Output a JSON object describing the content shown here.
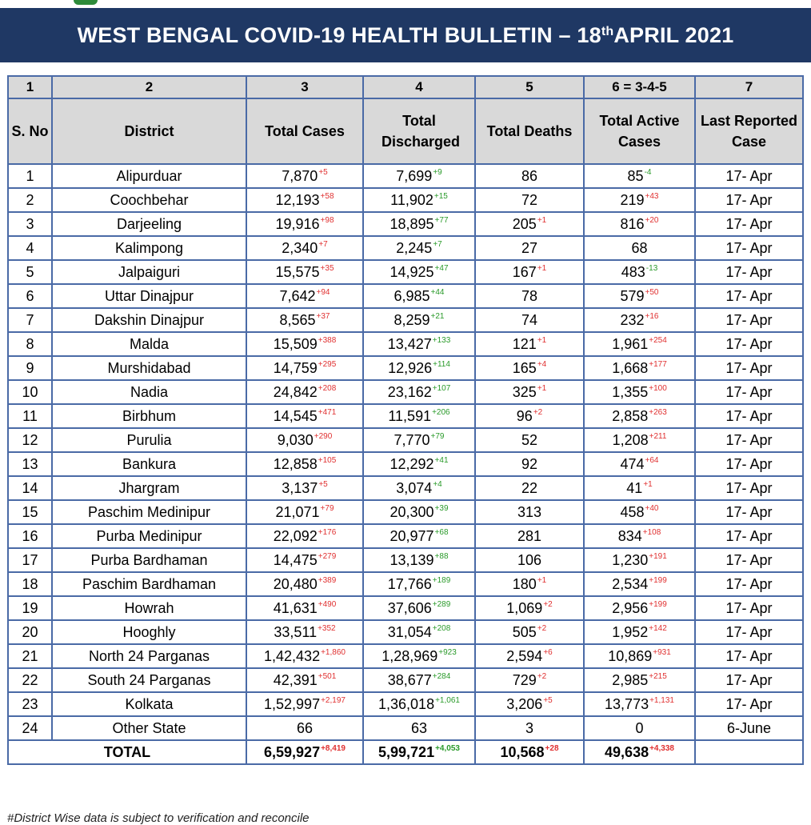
{
  "bulletin_title": "WEST BENGAL COVID-19 HEALTH BULLETIN – 18",
  "bulletin_title_sup": "th",
  "bulletin_title_tail": " APRIL 2021",
  "column_numbers": [
    "1",
    "2",
    "3",
    "4",
    "5",
    "6 = 3-4-5",
    "7"
  ],
  "column_titles": [
    "S. No",
    "District",
    "Total Cases",
    "Total Discharged",
    "Total Deaths",
    "Total Active Cases",
    "Last Reported Case"
  ],
  "rows": [
    {
      "sno": "1",
      "district": "Alipurduar",
      "cases": "7,870",
      "cases_d": "+5",
      "disc": "7,699",
      "disc_d": "+9",
      "deaths": "86",
      "deaths_d": "",
      "active": "85",
      "active_d": "-4",
      "last": "17- Apr"
    },
    {
      "sno": "2",
      "district": "Coochbehar",
      "cases": "12,193",
      "cases_d": "+58",
      "disc": "11,902",
      "disc_d": "+15",
      "deaths": "72",
      "deaths_d": "",
      "active": "219",
      "active_d": "+43",
      "last": "17- Apr"
    },
    {
      "sno": "3",
      "district": "Darjeeling",
      "cases": "19,916",
      "cases_d": "+98",
      "disc": "18,895",
      "disc_d": "+77",
      "deaths": "205",
      "deaths_d": "+1",
      "active": "816",
      "active_d": "+20",
      "last": "17- Apr"
    },
    {
      "sno": "4",
      "district": "Kalimpong",
      "cases": "2,340",
      "cases_d": "+7",
      "disc": "2,245",
      "disc_d": "+7",
      "deaths": "27",
      "deaths_d": "",
      "active": "68",
      "active_d": "",
      "last": "17- Apr"
    },
    {
      "sno": "5",
      "district": "Jalpaiguri",
      "cases": "15,575",
      "cases_d": "+35",
      "disc": "14,925",
      "disc_d": "+47",
      "deaths": "167",
      "deaths_d": "+1",
      "active": "483",
      "active_d": "-13",
      "last": "17- Apr"
    },
    {
      "sno": "6",
      "district": "Uttar Dinajpur",
      "cases": "7,642",
      "cases_d": "+94",
      "disc": "6,985",
      "disc_d": "+44",
      "deaths": "78",
      "deaths_d": "",
      "active": "579",
      "active_d": "+50",
      "last": "17- Apr"
    },
    {
      "sno": "7",
      "district": "Dakshin Dinajpur",
      "cases": "8,565",
      "cases_d": "+37",
      "disc": "8,259",
      "disc_d": "+21",
      "deaths": "74",
      "deaths_d": "",
      "active": "232",
      "active_d": "+16",
      "last": "17- Apr"
    },
    {
      "sno": "8",
      "district": "Malda",
      "cases": "15,509",
      "cases_d": "+388",
      "disc": "13,427",
      "disc_d": "+133",
      "deaths": "121",
      "deaths_d": "+1",
      "active": "1,961",
      "active_d": "+254",
      "last": "17- Apr"
    },
    {
      "sno": "9",
      "district": "Murshidabad",
      "cases": "14,759",
      "cases_d": "+295",
      "disc": "12,926",
      "disc_d": "+114",
      "deaths": "165",
      "deaths_d": "+4",
      "active": "1,668",
      "active_d": "+177",
      "last": "17- Apr"
    },
    {
      "sno": "10",
      "district": "Nadia",
      "cases": "24,842",
      "cases_d": "+208",
      "disc": "23,162",
      "disc_d": "+107",
      "deaths": "325",
      "deaths_d": "+1",
      "active": "1,355",
      "active_d": "+100",
      "last": "17- Apr"
    },
    {
      "sno": "11",
      "district": "Birbhum",
      "cases": "14,545",
      "cases_d": "+471",
      "disc": "11,591",
      "disc_d": "+206",
      "deaths": "96",
      "deaths_d": "+2",
      "active": "2,858",
      "active_d": "+263",
      "last": "17- Apr"
    },
    {
      "sno": "12",
      "district": "Purulia",
      "cases": "9,030",
      "cases_d": "+290",
      "disc": "7,770",
      "disc_d": "+79",
      "deaths": "52",
      "deaths_d": "",
      "active": "1,208",
      "active_d": "+211",
      "last": "17- Apr"
    },
    {
      "sno": "13",
      "district": "Bankura",
      "cases": "12,858",
      "cases_d": "+105",
      "disc": "12,292",
      "disc_d": "+41",
      "deaths": "92",
      "deaths_d": "",
      "active": "474",
      "active_d": "+64",
      "last": "17- Apr"
    },
    {
      "sno": "14",
      "district": "Jhargram",
      "cases": "3,137",
      "cases_d": "+5",
      "disc": "3,074",
      "disc_d": "+4",
      "deaths": "22",
      "deaths_d": "",
      "active": "41",
      "active_d": "+1",
      "last": "17- Apr"
    },
    {
      "sno": "15",
      "district": "Paschim Medinipur",
      "cases": "21,071",
      "cases_d": "+79",
      "disc": "20,300",
      "disc_d": "+39",
      "deaths": "313",
      "deaths_d": "",
      "active": "458",
      "active_d": "+40",
      "last": "17- Apr"
    },
    {
      "sno": "16",
      "district": "Purba Medinipur",
      "cases": "22,092",
      "cases_d": "+176",
      "disc": "20,977",
      "disc_d": "+68",
      "deaths": "281",
      "deaths_d": "",
      "active": "834",
      "active_d": "+108",
      "last": "17- Apr"
    },
    {
      "sno": "17",
      "district": "Purba Bardhaman",
      "cases": "14,475",
      "cases_d": "+279",
      "disc": "13,139",
      "disc_d": "+88",
      "deaths": "106",
      "deaths_d": "",
      "active": "1,230",
      "active_d": "+191",
      "last": "17- Apr"
    },
    {
      "sno": "18",
      "district": "Paschim Bardhaman",
      "cases": "20,480",
      "cases_d": "+389",
      "disc": "17,766",
      "disc_d": "+189",
      "deaths": "180",
      "deaths_d": "+1",
      "active": "2,534",
      "active_d": "+199",
      "last": "17- Apr"
    },
    {
      "sno": "19",
      "district": "Howrah",
      "cases": "41,631",
      "cases_d": "+490",
      "disc": "37,606",
      "disc_d": "+289",
      "deaths": "1,069",
      "deaths_d": "+2",
      "active": "2,956",
      "active_d": "+199",
      "last": "17- Apr"
    },
    {
      "sno": "20",
      "district": "Hooghly",
      "cases": "33,511",
      "cases_d": "+352",
      "disc": "31,054",
      "disc_d": "+208",
      "deaths": "505",
      "deaths_d": "+2",
      "active": "1,952",
      "active_d": "+142",
      "last": "17- Apr"
    },
    {
      "sno": "21",
      "district": "North 24 Parganas",
      "cases": "1,42,432",
      "cases_d": "+1,860",
      "disc": "1,28,969",
      "disc_d": "+923",
      "deaths": "2,594",
      "deaths_d": "+6",
      "active": "10,869",
      "active_d": "+931",
      "last": "17- Apr"
    },
    {
      "sno": "22",
      "district": "South 24 Parganas",
      "cases": "42,391",
      "cases_d": "+501",
      "disc": "38,677",
      "disc_d": "+284",
      "deaths": "729",
      "deaths_d": "+2",
      "active": "2,985",
      "active_d": "+215",
      "last": "17- Apr"
    },
    {
      "sno": "23",
      "district": "Kolkata",
      "cases": "1,52,997",
      "cases_d": "+2,197",
      "disc": "1,36,018",
      "disc_d": "+1,061",
      "deaths": "3,206",
      "deaths_d": "+5",
      "active": "13,773",
      "active_d": "+1,131",
      "last": "17- Apr"
    },
    {
      "sno": "24",
      "district": "Other State",
      "cases": "66",
      "cases_d": "",
      "disc": "63",
      "disc_d": "",
      "deaths": "3",
      "deaths_d": "",
      "active": "0",
      "active_d": "",
      "last": "6-June"
    }
  ],
  "total": {
    "label": "TOTAL",
    "cases": "6,59,927",
    "cases_d": "+8,419",
    "disc": "5,99,721",
    "disc_d": "+4,053",
    "deaths": "10,568",
    "deaths_d": "+28",
    "active": "49,638",
    "active_d": "+4,338",
    "last": ""
  },
  "footnote": "#District Wise data is subject to verification and reconcile",
  "colors": {
    "banner": "#1f3864",
    "header_fill": "#d9d9d9",
    "border": "#4a6aa6",
    "increase": "#e03030",
    "decrease": "#2a9a2a"
  }
}
